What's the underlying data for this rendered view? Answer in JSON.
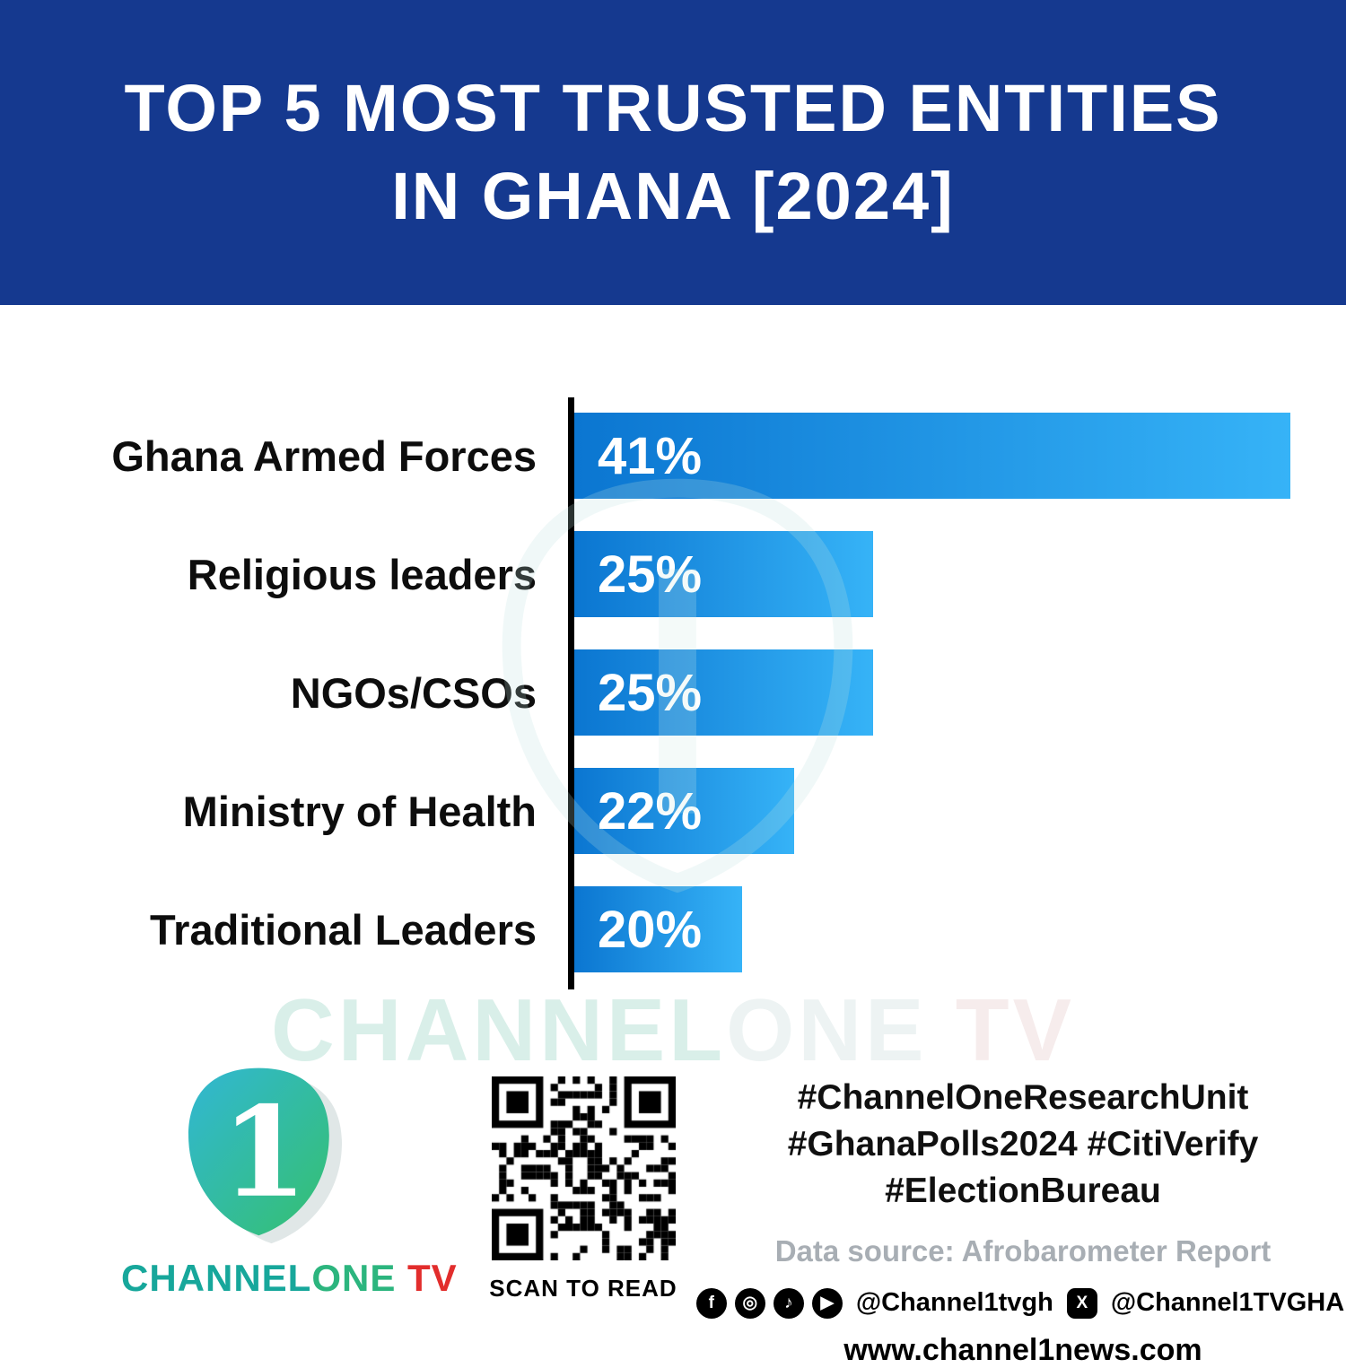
{
  "header": {
    "title_line1": "TOP 5 MOST TRUSTED ENTITIES",
    "title_line2": "IN GHANA [2024]",
    "background_color": "#15398f"
  },
  "chart_data": {
    "type": "bar",
    "orientation": "horizontal",
    "title": "Top 5 Most Trusted Entities in Ghana [2024]",
    "categories": [
      "Ghana Armed Forces",
      "Religious leaders",
      "NGOs/CSOs",
      "Ministry of Health",
      "Traditional Leaders"
    ],
    "values": [
      41,
      25,
      25,
      22,
      20
    ],
    "value_labels": [
      "41%",
      "25%",
      "25%",
      "22%",
      "20%"
    ],
    "unit": "%",
    "bar_width_pct": [
      100,
      41.7,
      41.7,
      30.7,
      23.4
    ],
    "bar_color_start": "#0b76d1",
    "bar_color_end": "#36b3f7",
    "axis_color": "#000000",
    "grid": false,
    "legend": false
  },
  "watermark": {
    "part1": "CHANNEL",
    "part2": "ONE",
    "part3": " TV"
  },
  "footer": {
    "logo": {
      "numeral": "1",
      "brand_part1": "CHANNEL",
      "brand_part2": "ONE",
      "brand_part3": " TV"
    },
    "qr_caption": "SCAN TO READ",
    "hashtags_line1": "#ChannelOneResearchUnit",
    "hashtags_line2": "#GhanaPolls2024 #CitiVerify",
    "hashtags_line3": "#ElectionBureau",
    "data_source": "Data source: Afrobarometer Report",
    "social": {
      "icons": {
        "facebook": "f",
        "instagram": "◎",
        "tiktok": "♪",
        "youtube": "▶",
        "x": "X"
      },
      "handle_main": "@Channel1tvgh",
      "handle_x": "@Channel1TVGHA"
    },
    "website": "www.channel1news.com"
  }
}
